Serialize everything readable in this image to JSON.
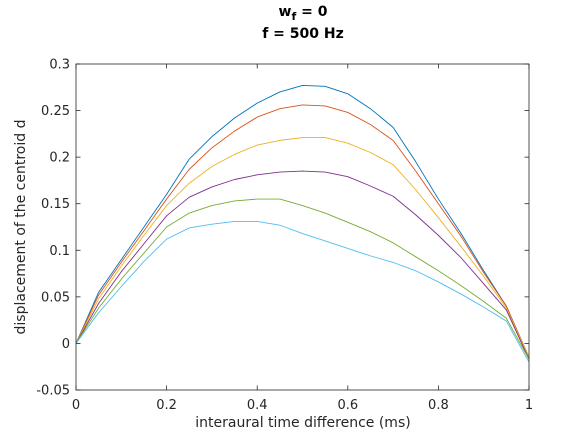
{
  "chart_data": {
    "type": "line",
    "title": "w",
    "title_subscript": "f",
    "title_suffix": " = 0",
    "subtitle": "f = 500 Hz",
    "xlabel": "interaural time difference (ms)",
    "ylabel": "displacement of the centroid d",
    "xlim": [
      0,
      1
    ],
    "ylim": [
      -0.05,
      0.3
    ],
    "xticks": [
      0,
      0.2,
      0.4,
      0.6,
      0.8,
      1
    ],
    "xtick_labels": [
      "0",
      "0.2",
      "0.4",
      "0.6",
      "0.8",
      "1"
    ],
    "yticks": [
      -0.05,
      0,
      0.05,
      0.1,
      0.15,
      0.2,
      0.25,
      0.3
    ],
    "ytick_labels": [
      "-0.05",
      "0",
      "0.05",
      "0.1",
      "0.15",
      "0.2",
      "0.25",
      "0.3"
    ],
    "grid": false,
    "x": [
      0,
      0.05,
      0.1,
      0.15,
      0.2,
      0.25,
      0.3,
      0.35,
      0.4,
      0.45,
      0.5,
      0.55,
      0.6,
      0.65,
      0.7,
      0.75,
      0.8,
      0.85,
      0.9,
      0.95,
      1
    ],
    "series": [
      {
        "color": "#0072bd",
        "values": [
          0,
          0.055,
          0.09,
          0.125,
          0.16,
          0.198,
          0.222,
          0.242,
          0.258,
          0.27,
          0.277,
          0.276,
          0.268,
          0.252,
          0.232,
          0.195,
          0.155,
          0.118,
          0.078,
          0.04,
          -0.015
        ]
      },
      {
        "color": "#d95319",
        "values": [
          0,
          0.052,
          0.087,
          0.121,
          0.155,
          0.187,
          0.21,
          0.228,
          0.243,
          0.252,
          0.256,
          0.255,
          0.248,
          0.235,
          0.218,
          0.185,
          0.15,
          0.115,
          0.076,
          0.04,
          -0.015
        ]
      },
      {
        "color": "#edb120",
        "values": [
          0,
          0.048,
          0.083,
          0.116,
          0.148,
          0.172,
          0.19,
          0.203,
          0.213,
          0.218,
          0.221,
          0.221,
          0.215,
          0.205,
          0.192,
          0.165,
          0.135,
          0.104,
          0.072,
          0.038,
          -0.015
        ]
      },
      {
        "color": "#7e2f8e",
        "values": [
          0,
          0.043,
          0.077,
          0.107,
          0.137,
          0.157,
          0.168,
          0.176,
          0.181,
          0.184,
          0.185,
          0.184,
          0.179,
          0.169,
          0.158,
          0.138,
          0.116,
          0.092,
          0.064,
          0.036,
          -0.017
        ]
      },
      {
        "color": "#77ac30",
        "values": [
          0,
          0.038,
          0.069,
          0.097,
          0.125,
          0.14,
          0.148,
          0.153,
          0.155,
          0.155,
          0.148,
          0.14,
          0.13,
          0.12,
          0.108,
          0.093,
          0.078,
          0.062,
          0.045,
          0.027,
          -0.017
        ]
      },
      {
        "color": "#4dbeee",
        "values": [
          0,
          0.033,
          0.061,
          0.088,
          0.112,
          0.124,
          0.128,
          0.131,
          0.131,
          0.127,
          0.118,
          0.11,
          0.102,
          0.094,
          0.087,
          0.078,
          0.066,
          0.053,
          0.039,
          0.024,
          -0.02
        ]
      }
    ]
  }
}
